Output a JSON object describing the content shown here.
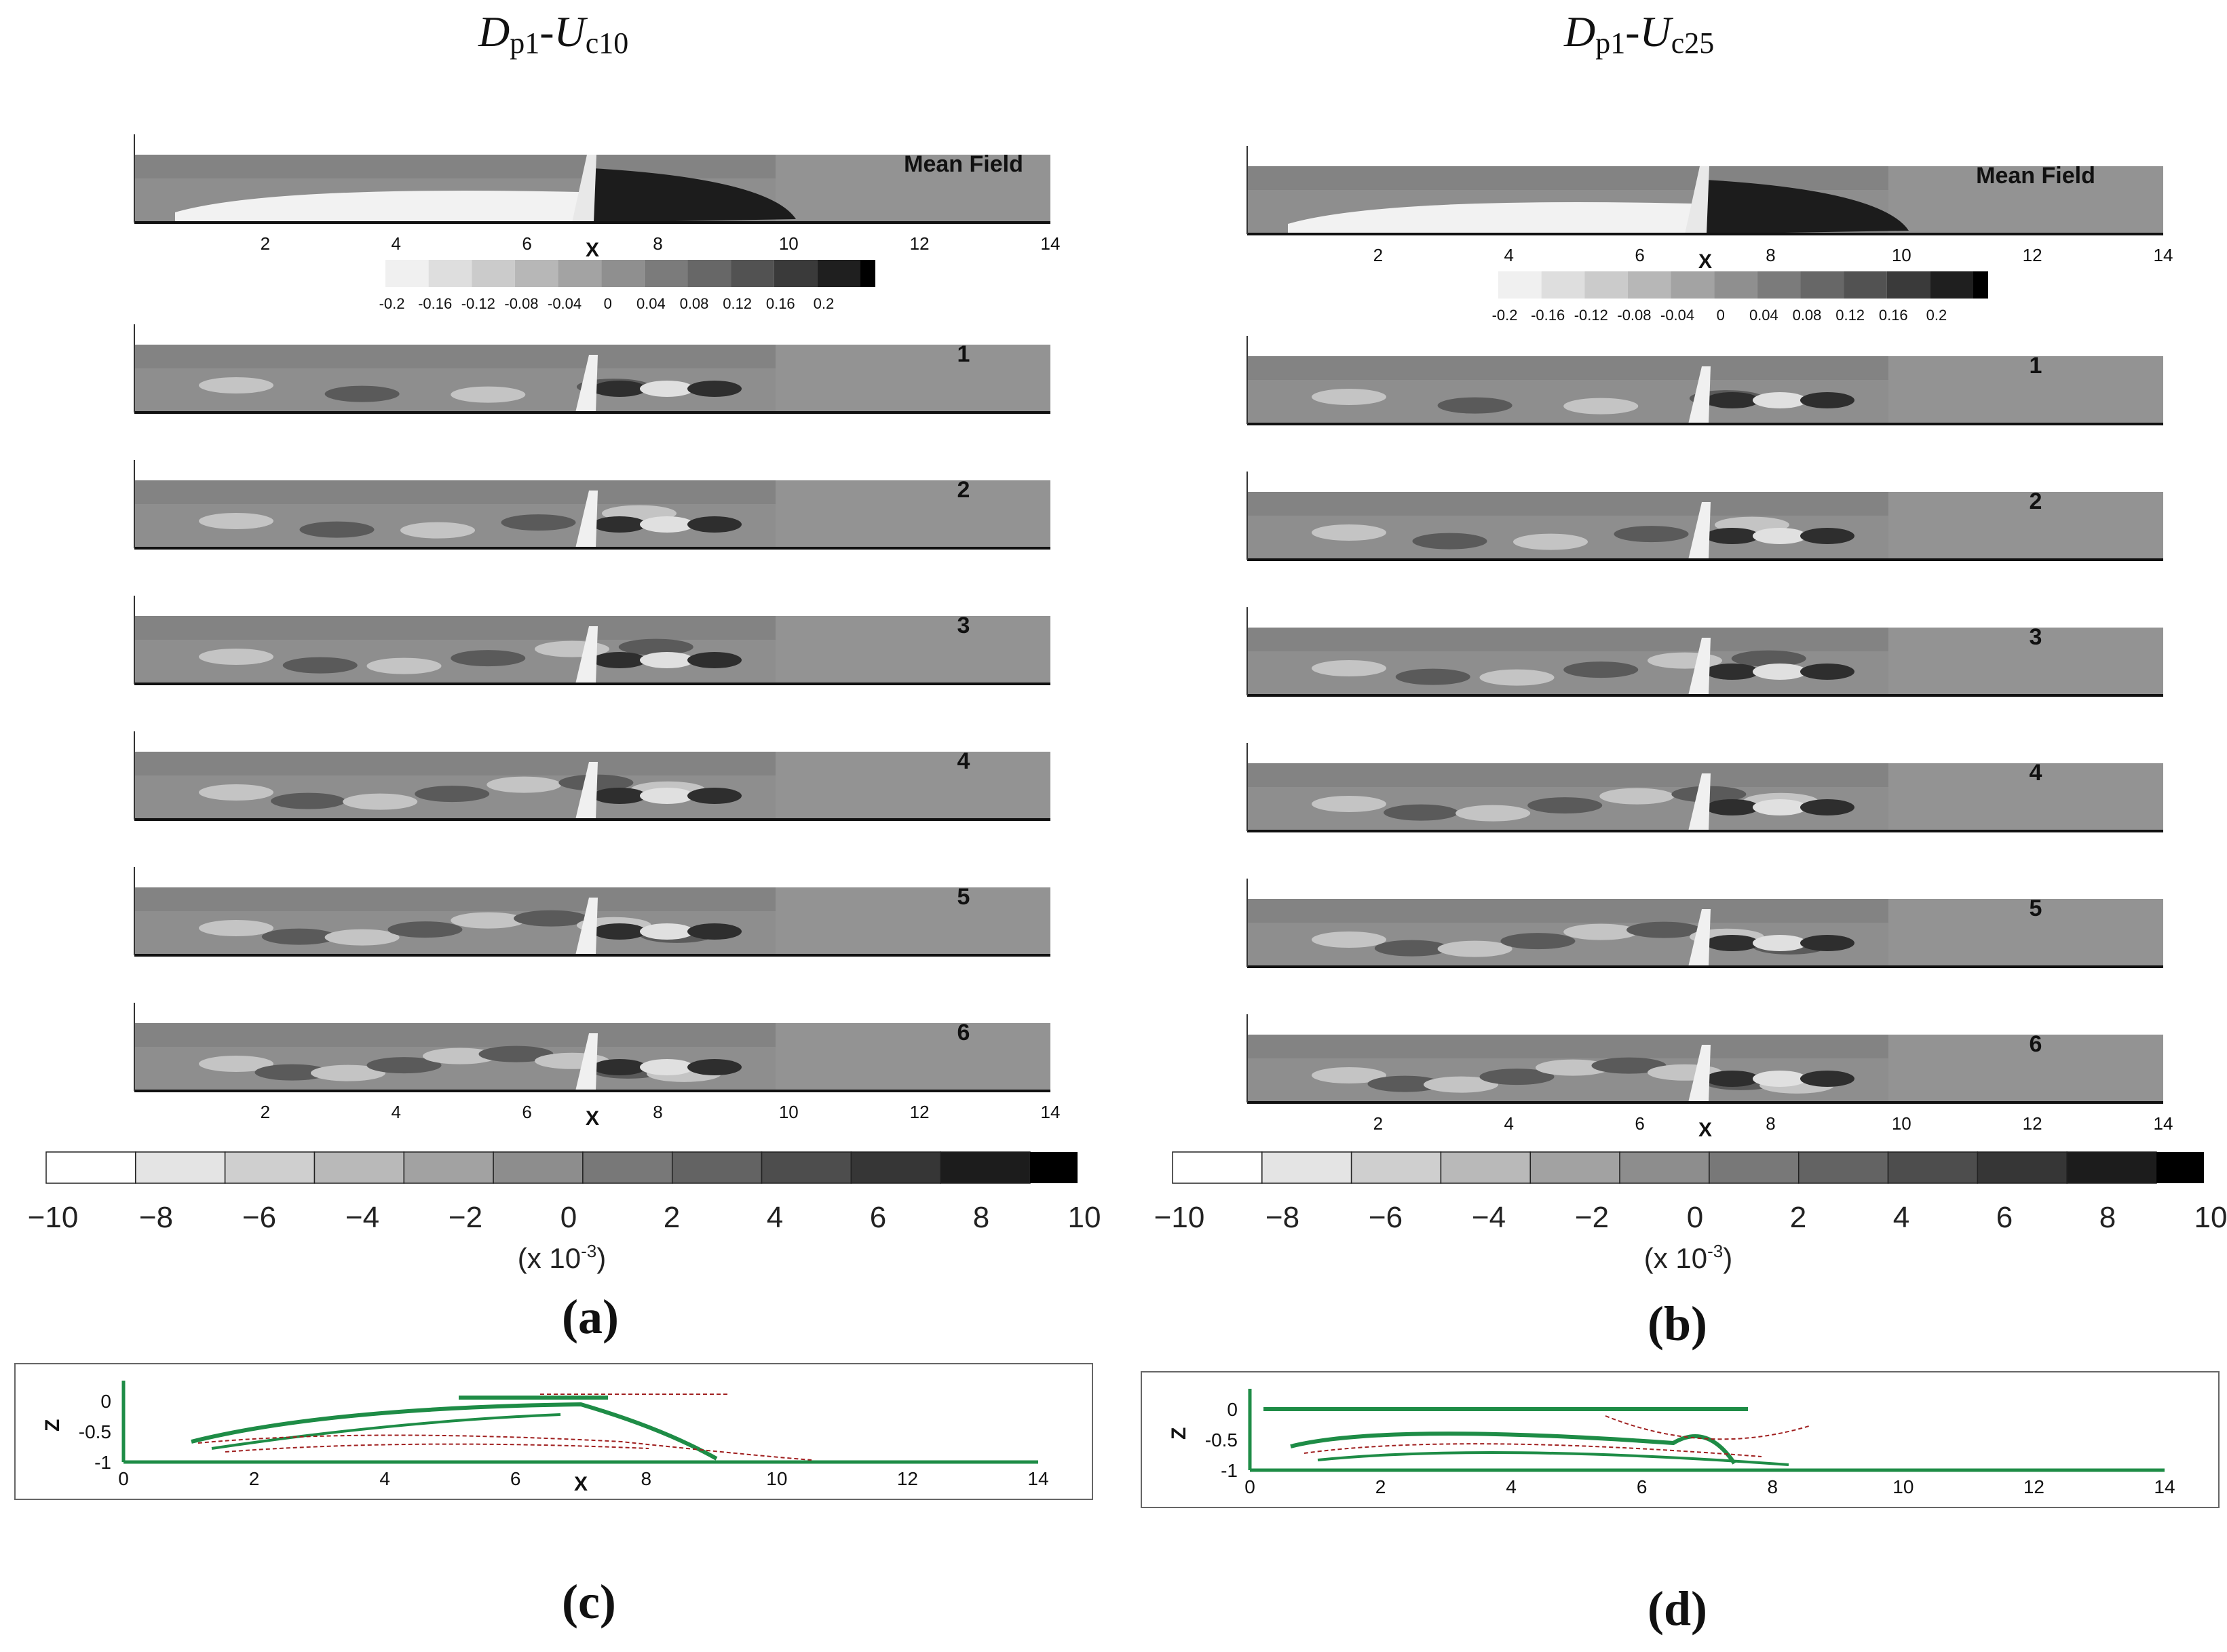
{
  "columns": [
    {
      "title_main": "D",
      "title_sub1": "p1",
      "title_dash": "-",
      "title_main2": "U",
      "title_sub2": "c10"
    },
    {
      "title_main": "D",
      "title_sub1": "p1",
      "title_dash": "-",
      "title_main2": "U",
      "title_sub2": "c25"
    }
  ],
  "panels": {
    "a": "(a)",
    "b": "(b)",
    "c": "(c)",
    "d": "(d)"
  },
  "mode_labels": [
    "Mean Field",
    "1",
    "2",
    "3",
    "4",
    "5",
    "6"
  ],
  "x_axis": {
    "label": "X",
    "ticks": [
      "2",
      "4",
      "6",
      "8",
      "10",
      "12",
      "14"
    ]
  },
  "small_colorbar": {
    "ticks": [
      "-0.2",
      "-0.16",
      "-0.12",
      "-0.08",
      "-0.04",
      "0",
      "0.04",
      "0.08",
      "0.12",
      "0.16",
      "0.2"
    ]
  },
  "large_colorbar": {
    "ticks": [
      "−10",
      "−8",
      "−6",
      "−4",
      "−2",
      "0",
      "2",
      "4",
      "6",
      "8",
      "10"
    ],
    "unit_base": "(x 10",
    "unit_exp": "-3",
    "unit_close": ")"
  },
  "streamline_axes": {
    "z_label": "Z",
    "z_ticks": [
      "0",
      "-0.5",
      "-1"
    ],
    "x_label": "X",
    "x_ticks": [
      "0",
      "2",
      "4",
      "6",
      "8",
      "10",
      "12",
      "14"
    ]
  },
  "colors": {
    "field": "#8c8c8c",
    "streamline_green": "#1e8c46",
    "streamline_red": "#a02020"
  }
}
